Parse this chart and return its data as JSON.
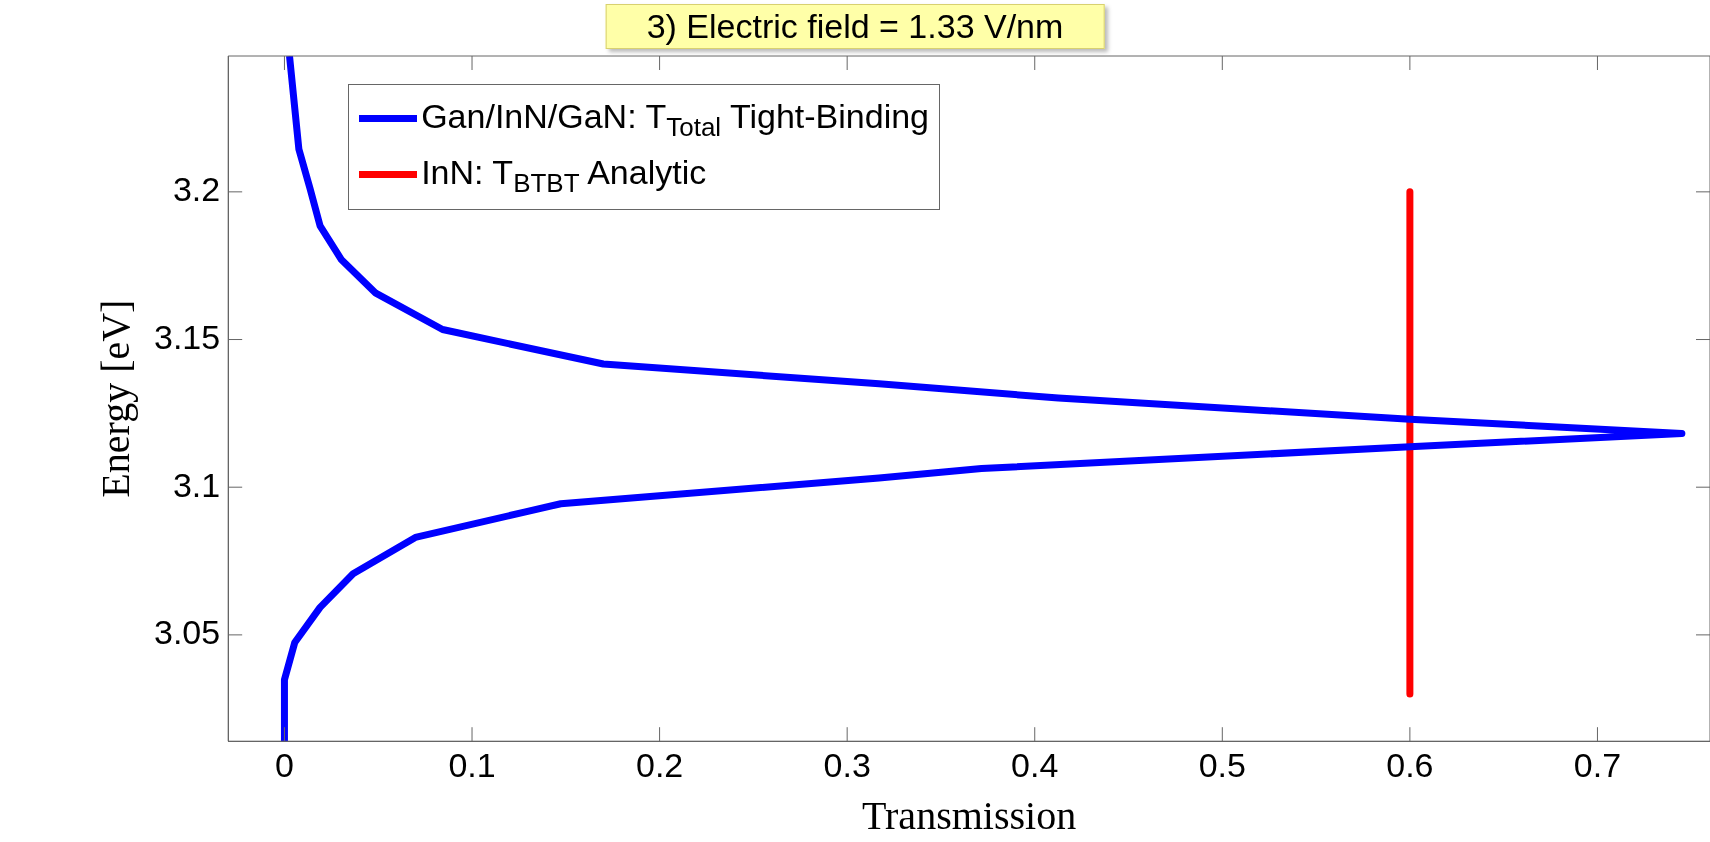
{
  "chart_data": {
    "type": "line",
    "title": "3)  Electric field = 1.33 V/nm",
    "xlabel": "Transmission",
    "ylabel": "Energy [eV]",
    "xlim": [
      -0.03,
      0.76
    ],
    "ylim": [
      3.014,
      3.246
    ],
    "xticks": [
      0,
      0.1,
      0.2,
      0.3,
      0.4,
      0.5,
      0.6,
      0.7
    ],
    "yticks": [
      3.05,
      3.1,
      3.15,
      3.2
    ],
    "grid": false,
    "legend": "top",
    "marker": "none",
    "line_style": "solid",
    "series": [
      {
        "name": "Gan/InN/GaN: T$_{Total}$ Tight-Binding",
        "color": "#0000ff",
        "x": [
          0.0027,
          0.0077,
          0.0136,
          0.019,
          0.0304,
          0.0487,
          0.0843,
          0.17,
          0.317,
          0.4126,
          0.6,
          0.745,
          0.6,
          0.3716,
          0.317,
          0.1473,
          0.0698,
          0.0366,
          0.019,
          0.0055,
          0,
          0
        ],
        "values": [
          3.246,
          3.2144,
          3.2012,
          3.1885,
          3.177,
          3.1657,
          3.1534,
          3.1417,
          3.135,
          3.1302,
          3.123,
          3.1182,
          3.1137,
          3.1063,
          3.1031,
          3.0944,
          3.083,
          3.0707,
          3.0593,
          3.0474,
          3.0348,
          3.014
        ]
      },
      {
        "name": "InN: T$_{BTBT}$ Analytic",
        "color": "#ff0000",
        "x": [
          0.6,
          0.6
        ],
        "values": [
          3.2,
          3.03
        ]
      }
    ]
  }
}
